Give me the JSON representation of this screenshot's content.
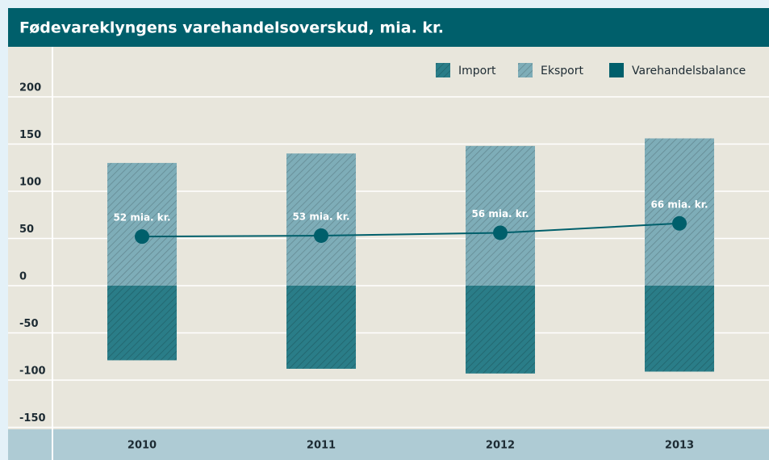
{
  "chart_data": {
    "type": "bar",
    "title": "Fødevareklyngens varehandelsoverskud, mia. kr.",
    "categories": [
      "2010",
      "2011",
      "2012",
      "2013"
    ],
    "series": [
      {
        "name": "Import",
        "color": "#2a7d88",
        "values": [
          -79,
          -88,
          -93,
          -91
        ]
      },
      {
        "name": "Eksport",
        "color": "#7eadb8",
        "values": [
          130,
          140,
          148,
          156
        ]
      },
      {
        "name": "Varehandelsbalance",
        "type": "line",
        "color": "#005f6b",
        "values": [
          52,
          53,
          56,
          66
        ],
        "value_labels": [
          "52 mia. kr.",
          "53 mia. kr.",
          "56 mia. kr.",
          "66 mia. kr."
        ]
      }
    ],
    "ylim": [
      -150,
      250
    ],
    "yticks": [
      -150,
      -100,
      -50,
      0,
      50,
      100,
      150,
      200
    ],
    "grid": true,
    "legend": "top-right"
  }
}
